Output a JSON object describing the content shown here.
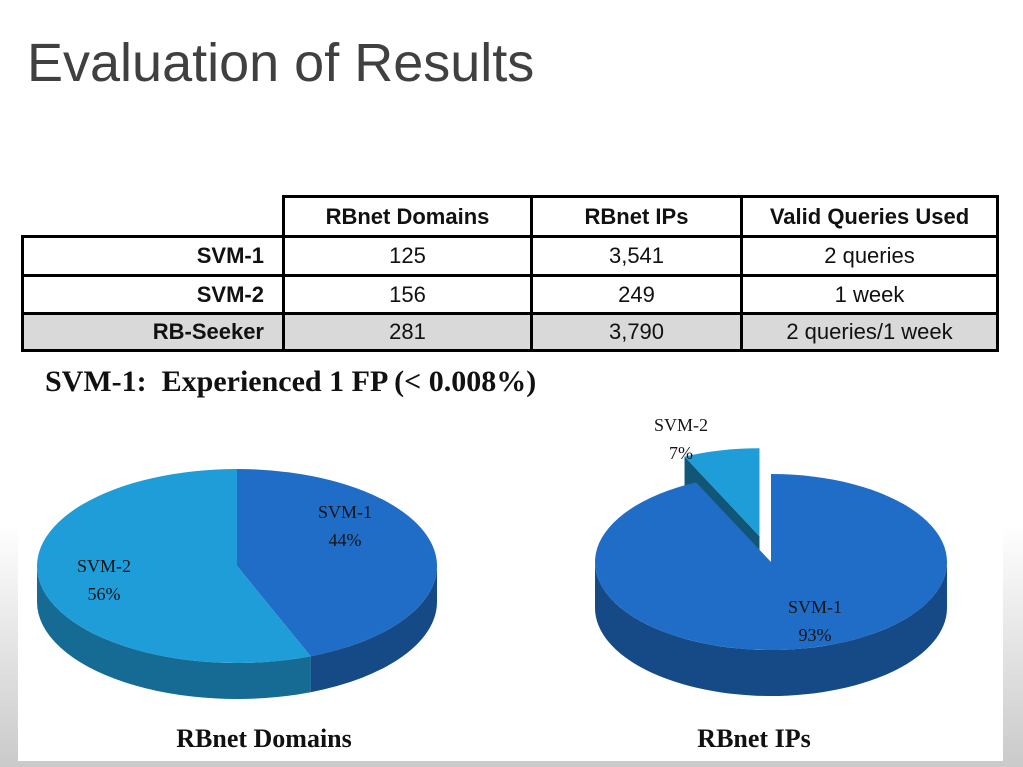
{
  "slide": {
    "title": "Evaluation of Results"
  },
  "table": {
    "columns": [
      "",
      "RBnet Domains",
      "RBnet IPs",
      "Valid Queries Used"
    ],
    "rows": [
      {
        "label": "SVM-1",
        "cells": [
          "125",
          "3,541",
          "2 queries"
        ]
      },
      {
        "label": "SVM-2",
        "cells": [
          "156",
          "249",
          "1 week"
        ]
      },
      {
        "label": "RB-Seeker",
        "cells": [
          "281",
          "3,790",
          "2 queries/1 week"
        ]
      }
    ]
  },
  "note": "SVM-1:  Experienced 1 FP (< 0.008%)",
  "chart_data": [
    {
      "type": "pie",
      "title": "RBnet Domains",
      "labels": [
        "SVM-1",
        "SVM-2"
      ],
      "values": [
        44,
        56
      ],
      "unit": "%",
      "colors": [
        "#1f6dc6",
        "#1f9dd9"
      ],
      "exploded": []
    },
    {
      "type": "pie",
      "title": "RBnet IPs",
      "labels": [
        "SVM-1",
        "SVM-2"
      ],
      "values": [
        93,
        7
      ],
      "unit": "%",
      "colors": [
        "#1f6dc6",
        "#1f9dd9"
      ],
      "exploded": [
        "SVM-2"
      ]
    }
  ]
}
